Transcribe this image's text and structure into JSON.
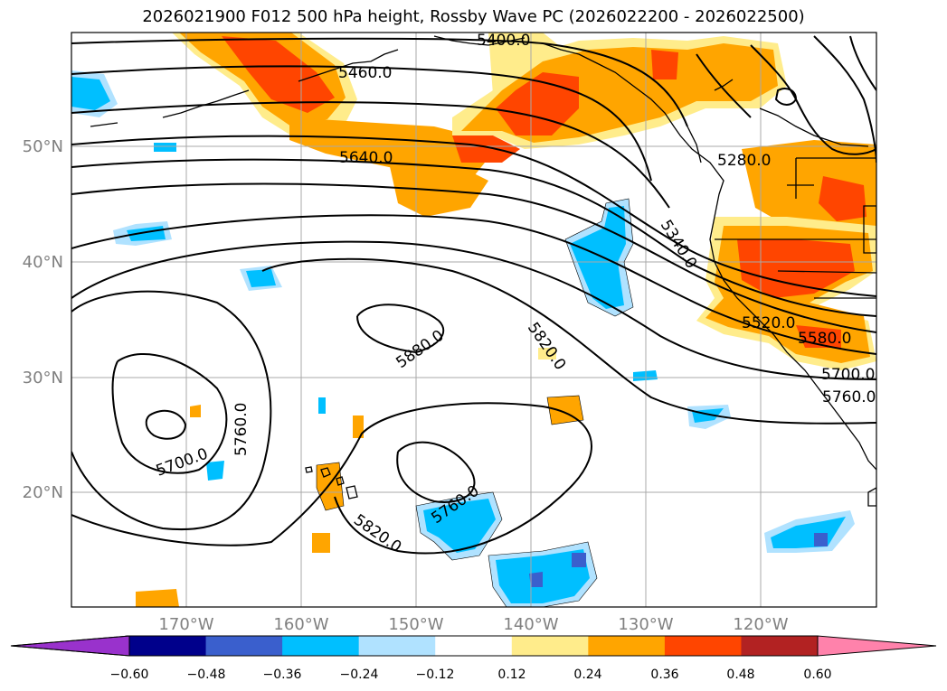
{
  "title": "2026021900 F012 500 hPa height, Rossby Wave PC (2026022200 - 2026022500)",
  "map": {
    "lat_ticks": [
      {
        "value": 50,
        "label": "50°N"
      },
      {
        "value": 40,
        "label": "40°N"
      },
      {
        "value": 30,
        "label": "30°N"
      },
      {
        "value": 20,
        "label": "20°N"
      }
    ],
    "lon_ticks": [
      {
        "value": -170,
        "label": "170°W"
      },
      {
        "value": -160,
        "label": "160°W"
      },
      {
        "value": -150,
        "label": "150°W"
      },
      {
        "value": -140,
        "label": "140°W"
      },
      {
        "value": -130,
        "label": "130°W"
      },
      {
        "value": -120,
        "label": "120°W"
      }
    ],
    "contour_labels": [
      "5400.0",
      "5460.0",
      "5640.0",
      "5280.0",
      "5340.0",
      "5820.0",
      "5880.0",
      "5700.0",
      "5760.0",
      "5820.0",
      "5760.0",
      "5520.0",
      "5580.0",
      "5700.0",
      "5760.0"
    ]
  },
  "colorbar": {
    "ticks": [
      "−0.60",
      "−0.48",
      "−0.36",
      "−0.24",
      "−0.12",
      "0.12",
      "0.24",
      "0.36",
      "0.48",
      "0.60"
    ],
    "colors": [
      "#9932cc",
      "#00008b",
      "#3a5fcd",
      "#00bfff",
      "#b0e2ff",
      "#ffffff",
      "#ffec8b",
      "#ffa500",
      "#ff4500",
      "#b22222",
      "#ff82ab"
    ]
  }
}
